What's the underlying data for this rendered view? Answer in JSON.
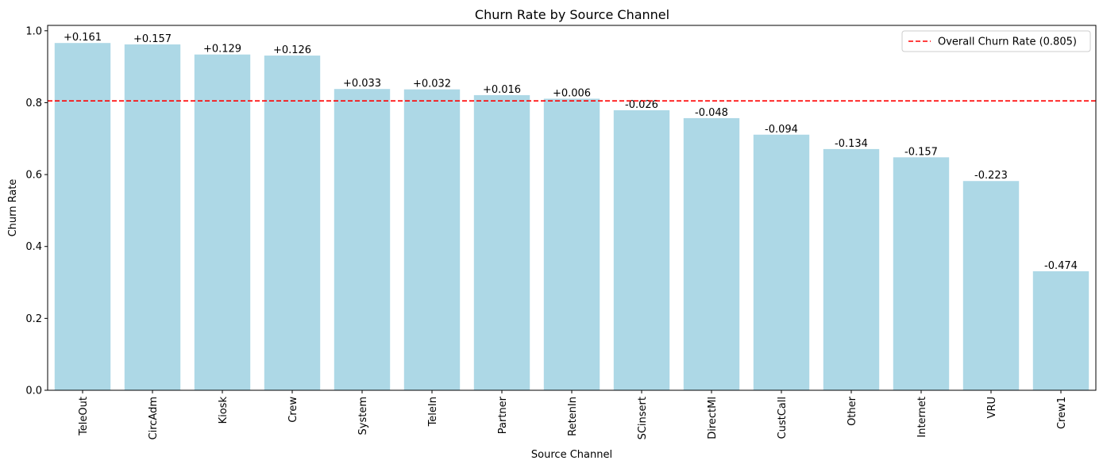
{
  "chart_data": {
    "type": "bar",
    "title": "Churn Rate by Source Channel",
    "xlabel": "Source Channel",
    "ylabel": "Churn Rate",
    "ylim": [
      0,
      1.015
    ],
    "yticks": [
      "0.0",
      "0.2",
      "0.4",
      "0.6",
      "0.8",
      "1.0"
    ],
    "bar_color": "#add8e6",
    "categories": [
      "TeleOut",
      "CircAdm",
      "Kiosk",
      "Crew",
      "System",
      "TeleIn",
      "Partner",
      "RetenIn",
      "SCinsert",
      "DirectMl",
      "CustCall",
      "Other",
      "Internet",
      "VRU",
      "Crew1"
    ],
    "values": [
      0.966,
      0.962,
      0.934,
      0.931,
      0.838,
      0.837,
      0.821,
      0.811,
      0.779,
      0.757,
      0.711,
      0.671,
      0.648,
      0.582,
      0.331
    ],
    "data_labels": [
      "+0.161",
      "+0.157",
      "+0.129",
      "+0.126",
      "+0.033",
      "+0.032",
      "+0.016",
      "+0.006",
      "-0.026",
      "-0.048",
      "-0.094",
      "-0.134",
      "-0.157",
      "-0.223",
      "-0.474"
    ],
    "reference_line": {
      "value": 0.805,
      "label": "Overall Churn Rate (0.805)",
      "color": "#ff0000",
      "style": "dashed"
    },
    "legend_position": "top-right",
    "grid": false
  }
}
